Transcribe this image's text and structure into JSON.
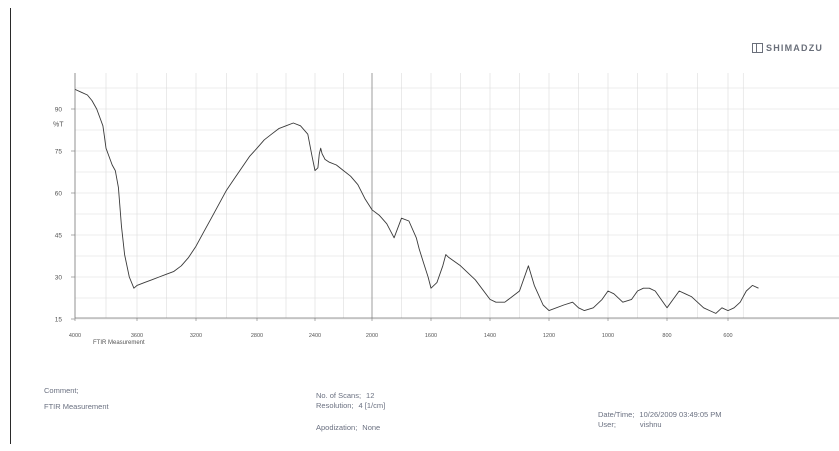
{
  "brand": {
    "name": "SHIMADZU"
  },
  "chart_data": {
    "type": "line",
    "ylabel": "%T",
    "y_ticks": [
      15,
      30,
      45,
      60,
      75,
      90
    ],
    "x_ticks": [
      4000,
      3600,
      3200,
      2800,
      2400,
      2000,
      1600,
      1400,
      1200,
      1000,
      800,
      600
    ],
    "x_tick_labels": [
      "4000",
      "3600",
      "3200",
      "2800",
      "2400",
      "2000",
      "1600",
      "1400",
      "1200",
      "1000",
      "800",
      "600"
    ],
    "xlim": [
      4000,
      500
    ],
    "ylim": [
      12,
      98
    ],
    "axis_caption": "FTIR Measurement",
    "grid": true,
    "series": [
      {
        "color": "#3a3a3a",
        "x": [
          4000,
          3960,
          3920,
          3890,
          3860,
          3840,
          3820,
          3810,
          3800,
          3780,
          3760,
          3740,
          3720,
          3700,
          3680,
          3650,
          3620,
          3600,
          3550,
          3500,
          3450,
          3400,
          3350,
          3300,
          3250,
          3200,
          3150,
          3100,
          3050,
          3000,
          2950,
          2900,
          2850,
          2800,
          2750,
          2700,
          2650,
          2600,
          2550,
          2500,
          2450,
          2420,
          2400,
          2380,
          2370,
          2360,
          2350,
          2340,
          2330,
          2300,
          2250,
          2200,
          2150,
          2100,
          2050,
          2000,
          1950,
          1900,
          1850,
          1800,
          1750,
          1700,
          1680,
          1650,
          1620,
          1600,
          1580,
          1560,
          1550,
          1540,
          1500,
          1450,
          1400,
          1380,
          1350,
          1300,
          1270,
          1250,
          1220,
          1200,
          1150,
          1120,
          1100,
          1080,
          1050,
          1020,
          1000,
          980,
          950,
          920,
          900,
          880,
          860,
          840,
          820,
          800,
          780,
          760,
          740,
          720,
          700,
          680,
          660,
          640,
          620,
          600,
          580,
          560,
          540,
          520,
          500
        ],
        "y": [
          97,
          96,
          95,
          93,
          90,
          87,
          84,
          80,
          76,
          73,
          70,
          68,
          62,
          48,
          38,
          30,
          26,
          27,
          28,
          29,
          30,
          31,
          32,
          34,
          37,
          41,
          46,
          51,
          56,
          61,
          65,
          69,
          73,
          76,
          79,
          81,
          83,
          84,
          85,
          84,
          81,
          73,
          68,
          69,
          74,
          76,
          74,
          73,
          72,
          71,
          70,
          68,
          66,
          63,
          58,
          54,
          52,
          49,
          44,
          51,
          50,
          44,
          40,
          35,
          30,
          26,
          28,
          34,
          38,
          37,
          34,
          29,
          22,
          21,
          21,
          25,
          34,
          27,
          20,
          18,
          20,
          21,
          19,
          18,
          19,
          22,
          25,
          24,
          21,
          22,
          25,
          26,
          26,
          25,
          22,
          19,
          22,
          25,
          24,
          23,
          21,
          19,
          18,
          17,
          19,
          18,
          19,
          21,
          25,
          27,
          26
        ]
      }
    ]
  },
  "footer": {
    "comment_label": "Comment;",
    "comment_value": "FTIR Measurement",
    "scans_label": "No. of Scans;",
    "scans_value": "12",
    "resolution_label": "Resolution;",
    "resolution_value": "4 [1/cm]",
    "apodization_label": "Apodization;",
    "apodization_value": "None",
    "datetime_label": "Date/Time;",
    "datetime_value": "10/26/2009 03:49:05 PM",
    "user_label": "User;",
    "user_value": "vishnu"
  }
}
